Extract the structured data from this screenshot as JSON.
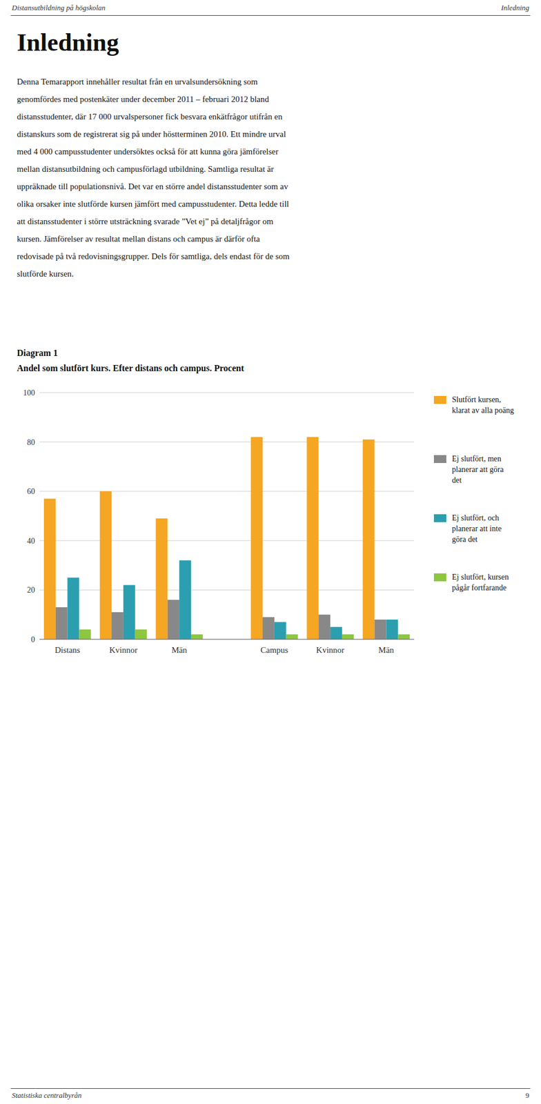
{
  "header_left": "Distansutbildning på högskolan",
  "header_right": "Inledning",
  "heading": "Inledning",
  "paragraph_lines": [
    "Denna Temarapport innehåller resultat från en urvalsundersökning som",
    "genomfördes med postenkäter under december 2011 – februari 2012 bland",
    "distansstudenter, där 17 000 urvalspersoner fick besvara enkätfrågor utifrån en",
    "distanskurs som de registrerat sig på under höstterminen 2010. Ett mindre urval",
    "med 4 000 campusstudenter undersöktes också för att kunna göra jämförelser",
    "mellan distansutbildning och campusförlagd utbildning. Samtliga resultat är",
    "uppräknade till populationsnivå. Det var en större andel distansstudenter som av",
    "olika orsaker inte slutförde kursen jämfört med campusstudenter. Detta ledde till",
    "att distansstudenter i större utsträckning svarade ”Vet ej” på detaljfrågor om",
    "kursen. Jämförelser av resultat mellan distans och campus är därför ofta",
    "redovisade på två redovisningsgrupper. Dels för samtliga, dels endast för de som",
    "slutförde kursen."
  ],
  "footer_left": "Statistiska centralbyrån",
  "footer_right": "9",
  "chart_data": {
    "type": "bar",
    "title": "Diagram 1",
    "subtitle": "Andel som slutfört kurs. Efter distans och campus. Procent",
    "categories": [
      "Distans",
      "Kvinnor",
      "Män",
      "Campus",
      "Kvinnor",
      "Män"
    ],
    "series": [
      {
        "name": "Slutfört kursen,\nklarat av alla poäng",
        "color": "#F5A623",
        "values": [
          57,
          60,
          49,
          82,
          82,
          81
        ]
      },
      {
        "name": "Ej slutfört, men\nplanerar att göra\ndet",
        "color": "#888888",
        "values": [
          13,
          11,
          16,
          9,
          10,
          8
        ]
      },
      {
        "name": "Ej slutfört, och\nplanerar att inte\ngöra det",
        "color": "#2B9FAF",
        "values": [
          25,
          22,
          32,
          7,
          5,
          8
        ]
      },
      {
        "name": "Ej slutfört, kursen\npågår fortfarande",
        "color": "#8DC63F",
        "values": [
          4,
          4,
          2,
          2,
          2,
          2
        ]
      }
    ],
    "ylim": [
      0,
      100
    ],
    "yticks": [
      0,
      20,
      40,
      60,
      80,
      100
    ],
    "grid": true,
    "legend": "right"
  }
}
